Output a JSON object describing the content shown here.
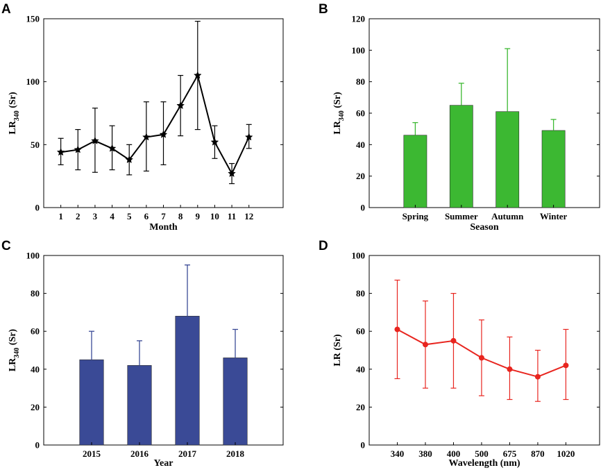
{
  "colors": {
    "black": "#000000",
    "green": "#3cb832",
    "navy": "#3a4a96",
    "red": "#e8251f"
  },
  "chart_data": [
    {
      "panel": "A",
      "type": "line",
      "marker": "star",
      "x": [
        1,
        2,
        3,
        4,
        5,
        6,
        7,
        8,
        9,
        10,
        11,
        12
      ],
      "tick_labels": [
        "1",
        "2",
        "3",
        "4",
        "5",
        "6",
        "7",
        "8",
        "9",
        "10",
        "11",
        "12"
      ],
      "values": [
        44,
        46,
        53,
        47,
        38,
        56,
        58,
        81,
        105,
        52,
        27,
        56
      ],
      "err_low": [
        34,
        30,
        28,
        30,
        26,
        29,
        34,
        57,
        62,
        39,
        19,
        47
      ],
      "err_high": [
        55,
        62,
        79,
        65,
        50,
        84,
        84,
        105,
        148,
        65,
        35,
        66
      ],
      "xlim": [
        0,
        14
      ],
      "ylim": [
        0,
        150
      ],
      "yticks": [
        0,
        50,
        100,
        150
      ],
      "xlabel": "Month",
      "ylabel_main": "LR",
      "ylabel_sub": "340",
      "ylabel_unit": " (Sr)",
      "color": "#000000"
    },
    {
      "panel": "B",
      "type": "bar",
      "categories": [
        "Spring",
        "Summer",
        "Autumn",
        "Winter"
      ],
      "values": [
        46,
        65,
        61,
        49
      ],
      "err_high": [
        54,
        79,
        101,
        56
      ],
      "ylim": [
        0,
        120
      ],
      "yticks": [
        0,
        20,
        40,
        60,
        80,
        100,
        120
      ],
      "xlabel": "Season",
      "ylabel_main": "LR",
      "ylabel_sub": "340",
      "ylabel_unit": " (Sr)",
      "color": "#3cb832"
    },
    {
      "panel": "C",
      "type": "bar",
      "categories": [
        "2015",
        "2016",
        "2017",
        "2018"
      ],
      "values": [
        45,
        42,
        68,
        46
      ],
      "err_high": [
        60,
        55,
        95,
        61
      ],
      "ylim": [
        0,
        100
      ],
      "yticks": [
        0,
        20,
        40,
        60,
        80,
        100
      ],
      "xlabel": "Year",
      "ylabel_main": "LR",
      "ylabel_sub": "340",
      "ylabel_unit": " (Sr)",
      "color": "#3a4a96"
    },
    {
      "panel": "D",
      "type": "line",
      "marker": "circle",
      "x": [
        1,
        2,
        3,
        4,
        5,
        6,
        7
      ],
      "tick_labels": [
        "340",
        "380",
        "400",
        "500",
        "675",
        "870",
        "1020"
      ],
      "values": [
        61,
        53,
        55,
        46,
        40,
        36,
        42
      ],
      "err_low": [
        35,
        30,
        30,
        26,
        24,
        23,
        24
      ],
      "err_high": [
        87,
        76,
        80,
        66,
        57,
        50,
        61
      ],
      "xlim": [
        0,
        8.2
      ],
      "ylim": [
        0,
        100
      ],
      "yticks": [
        0,
        20,
        40,
        60,
        80,
        100
      ],
      "xlabel": "Wavelength (nm)",
      "ylabel_main": "LR",
      "ylabel_sub": "",
      "ylabel_unit": " (Sr)",
      "color": "#e8251f"
    }
  ]
}
